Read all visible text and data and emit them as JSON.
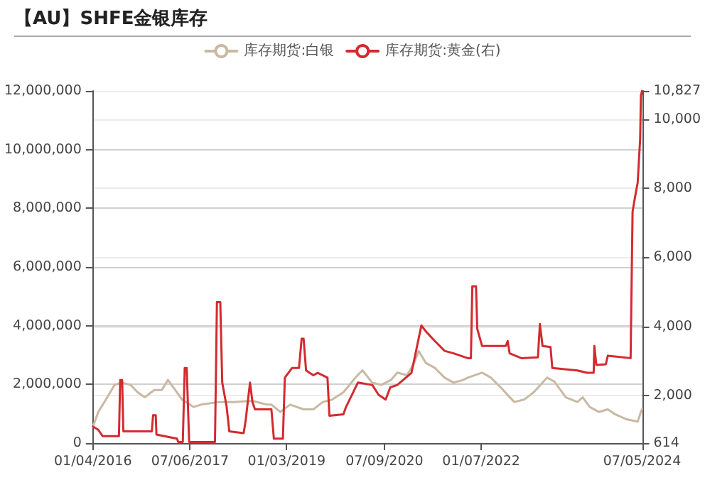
{
  "chart_data": {
    "type": "line",
    "title": "【AU】SHFE金银库存",
    "xlim": [
      "2016-01-04",
      "2024-07-05"
    ],
    "xticks": [
      {
        "value": "2016-01-04",
        "label": "01/04/2016"
      },
      {
        "value": "2017-07-06",
        "label": "07/06/2017"
      },
      {
        "value": "2019-01-03",
        "label": "01/03/2019"
      },
      {
        "value": "2020-07-09",
        "label": "07/09/2020"
      },
      {
        "value": "2022-01-07",
        "label": "01/07/2022"
      },
      {
        "value": "2024-07-05",
        "label": "07/05/2024"
      }
    ],
    "ylim": [
      0,
      12000000
    ],
    "yticks": [
      0,
      {
        "value": 2000000,
        "label": "2,000,000"
      },
      {
        "value": 4000000,
        "label": "4,000,000"
      },
      {
        "value": 6000000,
        "label": "6,000,000"
      },
      {
        "value": 8000000,
        "label": "8,000,000"
      },
      {
        "value": 10000000,
        "label": "10,000,000"
      },
      {
        "value": 12000000,
        "label": "12,000,000"
      }
    ],
    "y2lim": [
      614,
      10827
    ],
    "y2ticks": [
      614,
      {
        "value": 2000,
        "label": "2,000"
      },
      {
        "value": 4000,
        "label": "4,000"
      },
      {
        "value": 6000,
        "label": "6,000"
      },
      {
        "value": 8000,
        "label": "8,000"
      },
      {
        "value": 10000,
        "label": "10,000"
      },
      {
        "value": 10827,
        "label": "10,827"
      }
    ],
    "grid": "y",
    "legend": "top",
    "marker": "none",
    "line_style": "solid",
    "series": [
      {
        "name": "库存期货:白银",
        "color": "#c9b9a3",
        "x": [
          "2016-01-04",
          "2016-02-03",
          "2016-03-25",
          "2016-05-05",
          "2016-06-14",
          "2016-08-04",
          "2016-09-13",
          "2016-10-23",
          "2016-12-16",
          "2017-01-27",
          "2017-03-03",
          "2017-04-13",
          "2017-05-22",
          "2017-07-27",
          "2017-09-06",
          "2017-12-20",
          "2018-03-10",
          "2018-06-24",
          "2018-09-13",
          "2018-10-09",
          "2018-11-28",
          "2019-01-23",
          "2019-04-09",
          "2019-06-03",
          "2019-07-27",
          "2019-09-17",
          "2019-11-20",
          "2020-01-27",
          "2020-03-07",
          "2020-05-01",
          "2020-06-21",
          "2020-08-15",
          "2020-09-20",
          "2020-11-14",
          "2020-12-24",
          "2021-01-19",
          "2021-02-28",
          "2021-04-20",
          "2021-06-14",
          "2021-08-04",
          "2021-09-27",
          "2021-10-23",
          "2022-01-12",
          "2022-03-03",
          "2022-04-27",
          "2022-07-13",
          "2022-09-06",
          "2022-10-31",
          "2022-12-20",
          "2023-01-15",
          "2023-02-24",
          "2023-05-01",
          "2023-07-05",
          "2023-08-04",
          "2023-09-13",
          "2023-11-03",
          "2023-12-24",
          "2024-02-03",
          "2024-04-09",
          "2024-06-10",
          "2024-06-28",
          "2024-07-05"
        ],
        "values": [
          560000,
          1060000,
          1560000,
          1980000,
          2060000,
          1980000,
          1730000,
          1560000,
          1810000,
          1810000,
          2150000,
          1810000,
          1480000,
          1230000,
          1310000,
          1400000,
          1400000,
          1440000,
          1310000,
          1310000,
          1060000,
          1310000,
          1150000,
          1150000,
          1400000,
          1480000,
          1730000,
          2230000,
          2480000,
          2060000,
          1980000,
          2150000,
          2400000,
          2310000,
          2730000,
          3140000,
          2730000,
          2560000,
          2230000,
          2060000,
          2150000,
          2230000,
          2400000,
          2230000,
          1900000,
          1400000,
          1480000,
          1730000,
          2060000,
          2230000,
          2100000,
          1560000,
          1400000,
          1560000,
          1230000,
          1060000,
          1150000,
          980000,
          810000,
          730000,
          1060000,
          1150000
        ]
      },
      {
        "name": "库存期货:黄金(右)",
        "color": "#d42a2f",
        "axis": "y2",
        "x": [
          "2016-01-04",
          "2016-02-03",
          "2016-02-28",
          "2016-05-30",
          "2016-06-06",
          "2016-06-17",
          "2016-06-24",
          "2016-12-02",
          "2016-12-09",
          "2016-12-24",
          "2016-12-28",
          "2017-04-23",
          "2017-05-01",
          "2017-05-26",
          "2017-06-06",
          "2017-06-17",
          "2017-07-01",
          "2017-11-24",
          "2017-12-05",
          "2017-12-24",
          "2018-01-04",
          "2018-01-29",
          "2018-02-13",
          "2018-05-05",
          "2018-05-16",
          "2018-06-10",
          "2018-06-24",
          "2018-07-08",
          "2018-10-09",
          "2018-10-23",
          "2018-12-13",
          "2018-12-24",
          "2019-02-03",
          "2019-03-14",
          "2019-03-29",
          "2019-04-09",
          "2019-04-23",
          "2019-06-03",
          "2019-06-28",
          "2019-08-22",
          "2019-09-02",
          "2019-11-20",
          "2019-12-05",
          "2020-02-10",
          "2020-05-01",
          "2020-06-06",
          "2020-07-16",
          "2020-08-11",
          "2020-09-20",
          "2020-12-09",
          "2021-02-03",
          "2021-02-28",
          "2021-04-20",
          "2021-06-14",
          "2021-08-04",
          "2021-10-23",
          "2021-11-10",
          "2021-11-18",
          "2021-12-09",
          "2021-12-16",
          "2022-01-12",
          "2022-05-26",
          "2022-06-06",
          "2022-06-17",
          "2022-08-22",
          "2022-11-24",
          "2022-12-05",
          "2022-12-20",
          "2023-02-03",
          "2023-02-13",
          "2023-07-05",
          "2023-08-29",
          "2023-10-05",
          "2023-10-09",
          "2023-10-20",
          "2023-12-13",
          "2023-12-24",
          "2024-05-01",
          "2024-05-12",
          "2024-05-26",
          "2024-06-10",
          "2024-06-24",
          "2024-06-28",
          "2024-07-05"
        ],
        "values": [
          1094,
          1000,
          814,
          814,
          2440,
          2440,
          954,
          954,
          1421,
          1421,
          860,
          741,
          644,
          644,
          2792,
          2792,
          644,
          644,
          4703,
          4703,
          2368,
          1663,
          954,
          900,
          1251,
          2368,
          1803,
          1591,
          1591,
          741,
          741,
          2512,
          2792,
          2792,
          3642,
          3642,
          2720,
          2580,
          2650,
          2512,
          1408,
          1450,
          1663,
          2368,
          2300,
          2015,
          1875,
          2230,
          2300,
          2652,
          4024,
          3854,
          3574,
          3289,
          3217,
          3077,
          3077,
          5157,
          5157,
          3926,
          3430,
          3430,
          3574,
          3217,
          3077,
          3100,
          4066,
          3430,
          3400,
          2792,
          2720,
          2652,
          2652,
          3430,
          2880,
          2900,
          3147,
          3077,
          7323,
          7748,
          8172,
          9446,
          10691,
          10827
        ]
      }
    ]
  }
}
